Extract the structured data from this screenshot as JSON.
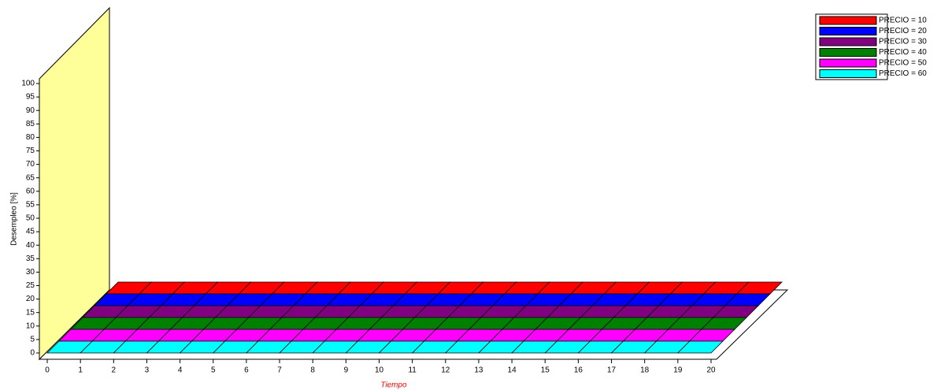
{
  "chart_data": {
    "type": "area3d",
    "x_label": "Tiempo",
    "y_label": "Desempleo [%]",
    "x": [
      0,
      1,
      2,
      3,
      4,
      5,
      6,
      7,
      8,
      9,
      10,
      11,
      12,
      13,
      14,
      15,
      16,
      17,
      18,
      19,
      20
    ],
    "xlim": [
      0,
      20
    ],
    "ylim": [
      0,
      100
    ],
    "yticks": [
      0,
      5,
      10,
      15,
      20,
      25,
      30,
      35,
      40,
      45,
      50,
      55,
      60,
      65,
      70,
      75,
      80,
      85,
      90,
      95,
      100
    ],
    "series": [
      {
        "name": "PRECIO = 10",
        "color": "#ff0000",
        "values": [
          0,
          0,
          0,
          0,
          0,
          0,
          0,
          0,
          0,
          0,
          0,
          0,
          0,
          0,
          0,
          0,
          0,
          0,
          0,
          0,
          0
        ]
      },
      {
        "name": "PRECIO = 20",
        "color": "#0000ff",
        "values": [
          0,
          0,
          0,
          0,
          0,
          0,
          0,
          0,
          0,
          0,
          0,
          0,
          0,
          0,
          0,
          0,
          0,
          0,
          0,
          0,
          0
        ]
      },
      {
        "name": "PRECIO = 30",
        "color": "#800080",
        "values": [
          0,
          0,
          0,
          0,
          0,
          0,
          0,
          0,
          0,
          0,
          0,
          0,
          0,
          0,
          0,
          0,
          0,
          0,
          0,
          0,
          0
        ]
      },
      {
        "name": "PRECIO = 40",
        "color": "#008000",
        "values": [
          0,
          0,
          0,
          0,
          0,
          0,
          0,
          0,
          0,
          0,
          0,
          0,
          0,
          0,
          0,
          0,
          0,
          0,
          0,
          0,
          0
        ]
      },
      {
        "name": "PRECIO = 50",
        "color": "#ff00ff",
        "values": [
          0,
          0,
          0,
          0,
          0,
          0,
          0,
          0,
          0,
          0,
          0,
          0,
          0,
          0,
          0,
          0,
          0,
          0,
          0,
          0,
          0
        ]
      },
      {
        "name": "PRECIO = 60",
        "color": "#00ffff",
        "values": [
          0,
          0,
          0,
          0,
          0,
          0,
          0,
          0,
          0,
          0,
          0,
          0,
          0,
          0,
          0,
          0,
          0,
          0,
          0,
          0,
          0
        ]
      }
    ],
    "legend": "top-right"
  }
}
